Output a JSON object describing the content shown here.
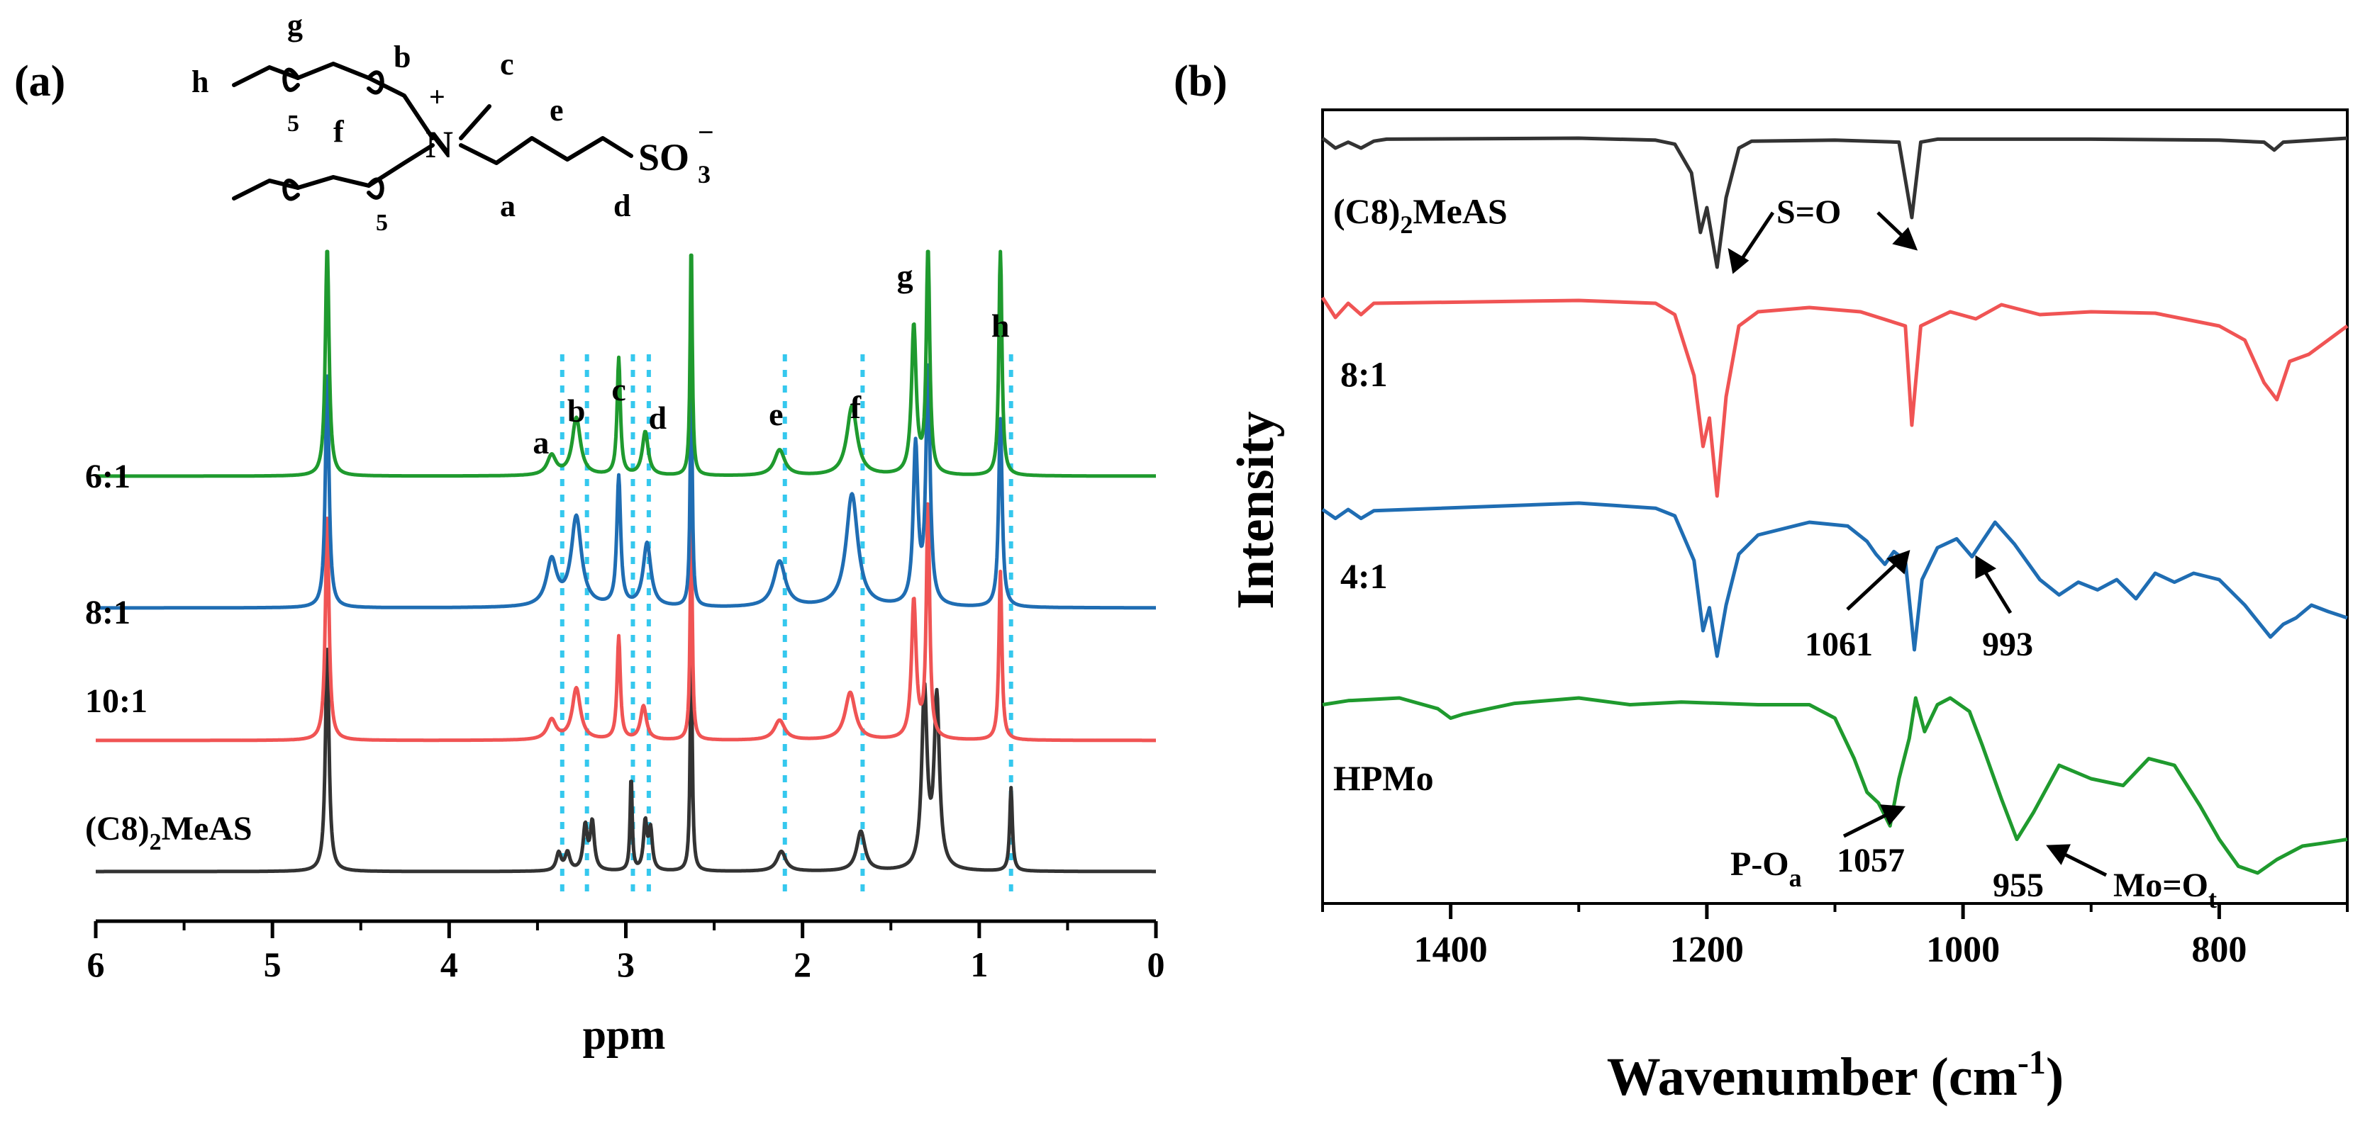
{
  "figure": {
    "panels": [
      "(a)",
      "(b)"
    ]
  },
  "chart_data": [
    {
      "id": "a",
      "type": "line",
      "title": "",
      "xlabel": "ppm",
      "ylabel": "",
      "xlim": [
        6,
        0
      ],
      "ticks": [
        "6",
        "5",
        "4",
        "3",
        "2",
        "1",
        "0"
      ],
      "series": [
        {
          "name": "(C8)2MeAS",
          "color": "#333333",
          "peaks": [
            [
              4.69,
              1.15,
              0.012
            ],
            [
              3.38,
              0.09,
              0.016
            ],
            [
              3.33,
              0.09,
              0.016
            ],
            [
              3.23,
              0.22,
              0.014
            ],
            [
              3.19,
              0.24,
              0.014
            ],
            [
              2.97,
              0.48,
              0.007
            ],
            [
              2.89,
              0.24,
              0.012
            ],
            [
              2.86,
              0.2,
              0.012
            ],
            [
              2.63,
              1.15,
              0.007
            ],
            [
              2.12,
              0.1,
              0.03
            ],
            [
              1.67,
              0.2,
              0.028
            ],
            [
              1.31,
              0.9,
              0.018
            ],
            [
              1.24,
              0.86,
              0.018
            ],
            [
              0.82,
              0.42,
              0.009
            ]
          ]
        },
        {
          "name": "10:1",
          "color": "#f05454",
          "peaks": [
            [
              4.69,
              1.15,
              0.012
            ],
            [
              3.42,
              0.1,
              0.03
            ],
            [
              3.28,
              0.26,
              0.028
            ],
            [
              3.04,
              0.52,
              0.011
            ],
            [
              2.9,
              0.17,
              0.02
            ],
            [
              2.63,
              1.15,
              0.007
            ],
            [
              2.13,
              0.1,
              0.035
            ],
            [
              1.73,
              0.24,
              0.035
            ],
            [
              1.37,
              0.7,
              0.016
            ],
            [
              1.29,
              1.2,
              0.011
            ],
            [
              0.88,
              0.85,
              0.01
            ]
          ]
        },
        {
          "name": "8:1",
          "color": "#1f6db3",
          "peaks": [
            [
              4.69,
              1.2,
              0.012
            ],
            [
              3.42,
              0.23,
              0.035
            ],
            [
              3.28,
              0.45,
              0.035
            ],
            [
              3.04,
              0.65,
              0.013
            ],
            [
              2.88,
              0.32,
              0.026
            ],
            [
              2.63,
              1.2,
              0.007
            ],
            [
              2.13,
              0.23,
              0.04
            ],
            [
              1.72,
              0.57,
              0.04
            ],
            [
              1.36,
              0.8,
              0.016
            ],
            [
              1.29,
              1.2,
              0.014
            ],
            [
              0.88,
              0.95,
              0.012
            ]
          ]
        },
        {
          "name": "6:1",
          "color": "#1f9a2e",
          "peaks": [
            [
              4.69,
              1.2,
              0.012
            ],
            [
              3.42,
              0.1,
              0.03
            ],
            [
              3.28,
              0.29,
              0.028
            ],
            [
              3.04,
              0.59,
              0.011
            ],
            [
              2.89,
              0.22,
              0.02
            ],
            [
              2.63,
              1.2,
              0.007
            ],
            [
              2.13,
              0.13,
              0.035
            ],
            [
              1.72,
              0.35,
              0.035
            ],
            [
              1.37,
              0.75,
              0.016
            ],
            [
              1.29,
              1.2,
              0.011
            ],
            [
              0.88,
              1.17,
              0.01
            ]
          ]
        }
      ],
      "peak_labels": [
        "a",
        "b",
        "c",
        "d",
        "e",
        "f",
        "g",
        "h"
      ],
      "reference_lines_ppm": [
        3.36,
        3.22,
        2.96,
        2.87,
        2.1,
        1.66,
        0.82
      ]
    },
    {
      "id": "b",
      "type": "line",
      "title": "",
      "xlabel": "Wavenumber (cm",
      "xlabel_sup": "-1",
      "xlabel_end": ")",
      "ylabel": "Intensity",
      "xlim": [
        1500,
        700
      ],
      "ticks": [
        "1400",
        "1200",
        "1000",
        "800"
      ],
      "series": [
        {
          "name": "(C8)2MeAS",
          "color": "#333333",
          "points": [
            [
              1500,
              0.0
            ],
            [
              1490,
              0.1
            ],
            [
              1480,
              0.04
            ],
            [
              1470,
              0.1
            ],
            [
              1460,
              0.03
            ],
            [
              1450,
              0.01
            ],
            [
              1300,
              0.0
            ],
            [
              1240,
              0.02
            ],
            [
              1225,
              0.06
            ],
            [
              1212,
              0.35
            ],
            [
              1205,
              0.95
            ],
            [
              1200,
              0.7
            ],
            [
              1192,
              1.3
            ],
            [
              1185,
              0.6
            ],
            [
              1175,
              0.1
            ],
            [
              1165,
              0.03
            ],
            [
              1100,
              0.02
            ],
            [
              1050,
              0.04
            ],
            [
              1040,
              0.8
            ],
            [
              1033,
              0.04
            ],
            [
              1020,
              0.01
            ],
            [
              900,
              0.01
            ],
            [
              800,
              0.02
            ],
            [
              765,
              0.04
            ],
            [
              757,
              0.12
            ],
            [
              750,
              0.04
            ],
            [
              700,
              0.0
            ]
          ]
        },
        {
          "name": "8:1",
          "color": "#f05454",
          "points": [
            [
              1500,
              0.0
            ],
            [
              1490,
              0.14
            ],
            [
              1480,
              0.04
            ],
            [
              1470,
              0.12
            ],
            [
              1460,
              0.04
            ],
            [
              1300,
              0.02
            ],
            [
              1240,
              0.04
            ],
            [
              1225,
              0.12
            ],
            [
              1210,
              0.55
            ],
            [
              1203,
              1.05
            ],
            [
              1198,
              0.85
            ],
            [
              1192,
              1.4
            ],
            [
              1185,
              0.7
            ],
            [
              1175,
              0.2
            ],
            [
              1160,
              0.1
            ],
            [
              1120,
              0.07
            ],
            [
              1080,
              0.1
            ],
            [
              1045,
              0.2
            ],
            [
              1040,
              0.9
            ],
            [
              1033,
              0.2
            ],
            [
              1010,
              0.1
            ],
            [
              990,
              0.15
            ],
            [
              970,
              0.05
            ],
            [
              940,
              0.12
            ],
            [
              900,
              0.1
            ],
            [
              850,
              0.11
            ],
            [
              800,
              0.2
            ],
            [
              780,
              0.3
            ],
            [
              765,
              0.6
            ],
            [
              755,
              0.72
            ],
            [
              745,
              0.45
            ],
            [
              730,
              0.4
            ],
            [
              715,
              0.3
            ],
            [
              700,
              0.2
            ]
          ]
        },
        {
          "name": "4:1",
          "color": "#1f6db3",
          "points": [
            [
              1500,
              0.05
            ],
            [
              1490,
              0.12
            ],
            [
              1480,
              0.05
            ],
            [
              1470,
              0.12
            ],
            [
              1460,
              0.06
            ],
            [
              1300,
              0.0
            ],
            [
              1240,
              0.04
            ],
            [
              1225,
              0.1
            ],
            [
              1210,
              0.45
            ],
            [
              1203,
              1.0
            ],
            [
              1198,
              0.82
            ],
            [
              1192,
              1.2
            ],
            [
              1185,
              0.8
            ],
            [
              1175,
              0.4
            ],
            [
              1160,
              0.25
            ],
            [
              1120,
              0.15
            ],
            [
              1090,
              0.18
            ],
            [
              1075,
              0.3
            ],
            [
              1068,
              0.4
            ],
            [
              1061,
              0.48
            ],
            [
              1054,
              0.38
            ],
            [
              1045,
              0.45
            ],
            [
              1038,
              1.15
            ],
            [
              1032,
              0.6
            ],
            [
              1020,
              0.35
            ],
            [
              1005,
              0.28
            ],
            [
              993,
              0.42
            ],
            [
              985,
              0.3
            ],
            [
              975,
              0.15
            ],
            [
              960,
              0.32
            ],
            [
              940,
              0.6
            ],
            [
              925,
              0.72
            ],
            [
              910,
              0.62
            ],
            [
              895,
              0.68
            ],
            [
              880,
              0.6
            ],
            [
              865,
              0.75
            ],
            [
              850,
              0.55
            ],
            [
              835,
              0.62
            ],
            [
              820,
              0.55
            ],
            [
              800,
              0.6
            ],
            [
              780,
              0.8
            ],
            [
              760,
              1.05
            ],
            [
              750,
              0.95
            ],
            [
              740,
              0.9
            ],
            [
              728,
              0.8
            ],
            [
              715,
              0.85
            ],
            [
              700,
              0.9
            ]
          ]
        },
        {
          "name": "HPMo",
          "color": "#1f9a2e",
          "points": [
            [
              1500,
              0.05
            ],
            [
              1480,
              0.02
            ],
            [
              1440,
              0.0
            ],
            [
              1410,
              0.08
            ],
            [
              1400,
              0.15
            ],
            [
              1390,
              0.12
            ],
            [
              1350,
              0.04
            ],
            [
              1300,
              0.0
            ],
            [
              1260,
              0.05
            ],
            [
              1220,
              0.03
            ],
            [
              1160,
              0.05
            ],
            [
              1120,
              0.05
            ],
            [
              1100,
              0.15
            ],
            [
              1085,
              0.45
            ],
            [
              1075,
              0.7
            ],
            [
              1066,
              0.78
            ],
            [
              1057,
              0.95
            ],
            [
              1050,
              0.6
            ],
            [
              1042,
              0.3
            ],
            [
              1037,
              0.0
            ],
            [
              1030,
              0.25
            ],
            [
              1020,
              0.05
            ],
            [
              1010,
              0.0
            ],
            [
              995,
              0.1
            ],
            [
              985,
              0.35
            ],
            [
              970,
              0.75
            ],
            [
              958,
              1.05
            ],
            [
              945,
              0.85
            ],
            [
              925,
              0.5
            ],
            [
              900,
              0.6
            ],
            [
              875,
              0.65
            ],
            [
              855,
              0.45
            ],
            [
              835,
              0.5
            ],
            [
              815,
              0.8
            ],
            [
              800,
              1.05
            ],
            [
              785,
              1.25
            ],
            [
              770,
              1.3
            ],
            [
              755,
              1.2
            ],
            [
              735,
              1.1
            ],
            [
              720,
              1.08
            ],
            [
              700,
              1.05
            ]
          ]
        }
      ],
      "annotations": [
        "S=O",
        "1061",
        "993",
        "P-O",
        "a",
        "1057",
        "955",
        "Mo=O",
        "t"
      ]
    }
  ],
  "structure": {
    "labels": [
      "h",
      "g",
      "b",
      "c",
      "e",
      "f",
      "5",
      "5",
      "a",
      "d",
      "+",
      "N",
      "SO",
      "3",
      "−"
    ]
  },
  "legend_a": [
    {
      "text": "6:1"
    },
    {
      "text": "8:1"
    },
    {
      "text": "10:1"
    },
    {
      "text": "(C8)",
      "sub": "2",
      "rest": "MeAS"
    }
  ],
  "legend_b": [
    {
      "text": "(C8)",
      "sub": "2",
      "rest": "MeAS"
    },
    {
      "text": "8:1"
    },
    {
      "text": "4:1"
    },
    {
      "text": "HPMo"
    }
  ]
}
